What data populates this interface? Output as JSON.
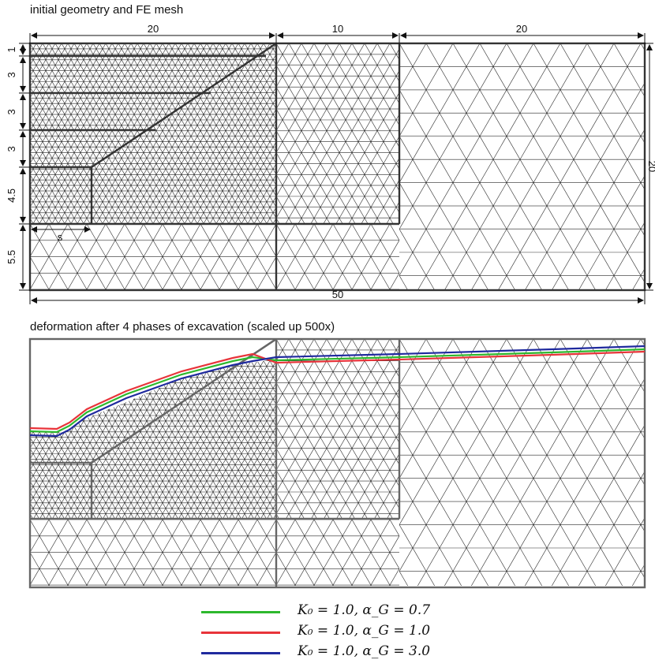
{
  "panels": {
    "top_title": "initial geometry and FE mesh",
    "bottom_title": "deformation after 4 phases of excavation (scaled up 500x)"
  },
  "dimensions": {
    "horizontal_top": [
      "20",
      "10",
      "20"
    ],
    "horizontal_bottom": "50",
    "vertical_left": [
      "1",
      "3",
      "3",
      "3",
      "4.5",
      "5.5"
    ],
    "vertical_right": "20",
    "berm_width": "s"
  },
  "legend": [
    {
      "label": "K₀ = 1.0,  α_G = 0.7",
      "color": "#2db82d"
    },
    {
      "label": "K₀ = 1.0,  α_G = 1.0",
      "color": "#e8343a"
    },
    {
      "label": "K₀ = 1.0,  α_G = 3.0",
      "color": "#1f2a9e"
    }
  ],
  "colors": {
    "mesh": "#2a2a2a",
    "geometry": "#555555",
    "frame": "#333333"
  }
}
